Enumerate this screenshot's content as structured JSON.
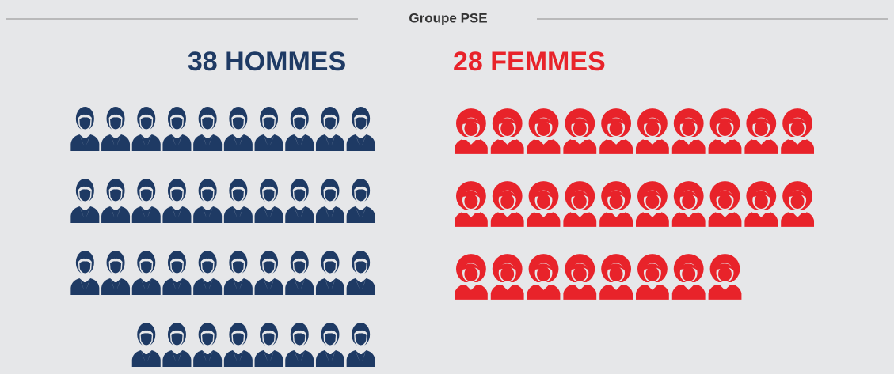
{
  "chart_data": {
    "type": "pictogram",
    "title": "Groupe PSE",
    "categories": [
      "HOMMES",
      "FEMMES"
    ],
    "values": [
      38,
      28
    ],
    "value_labels": [
      "38 HOMMES",
      "28 FEMMES"
    ],
    "colors": [
      "#1e3a64",
      "#e8232a"
    ]
  }
}
